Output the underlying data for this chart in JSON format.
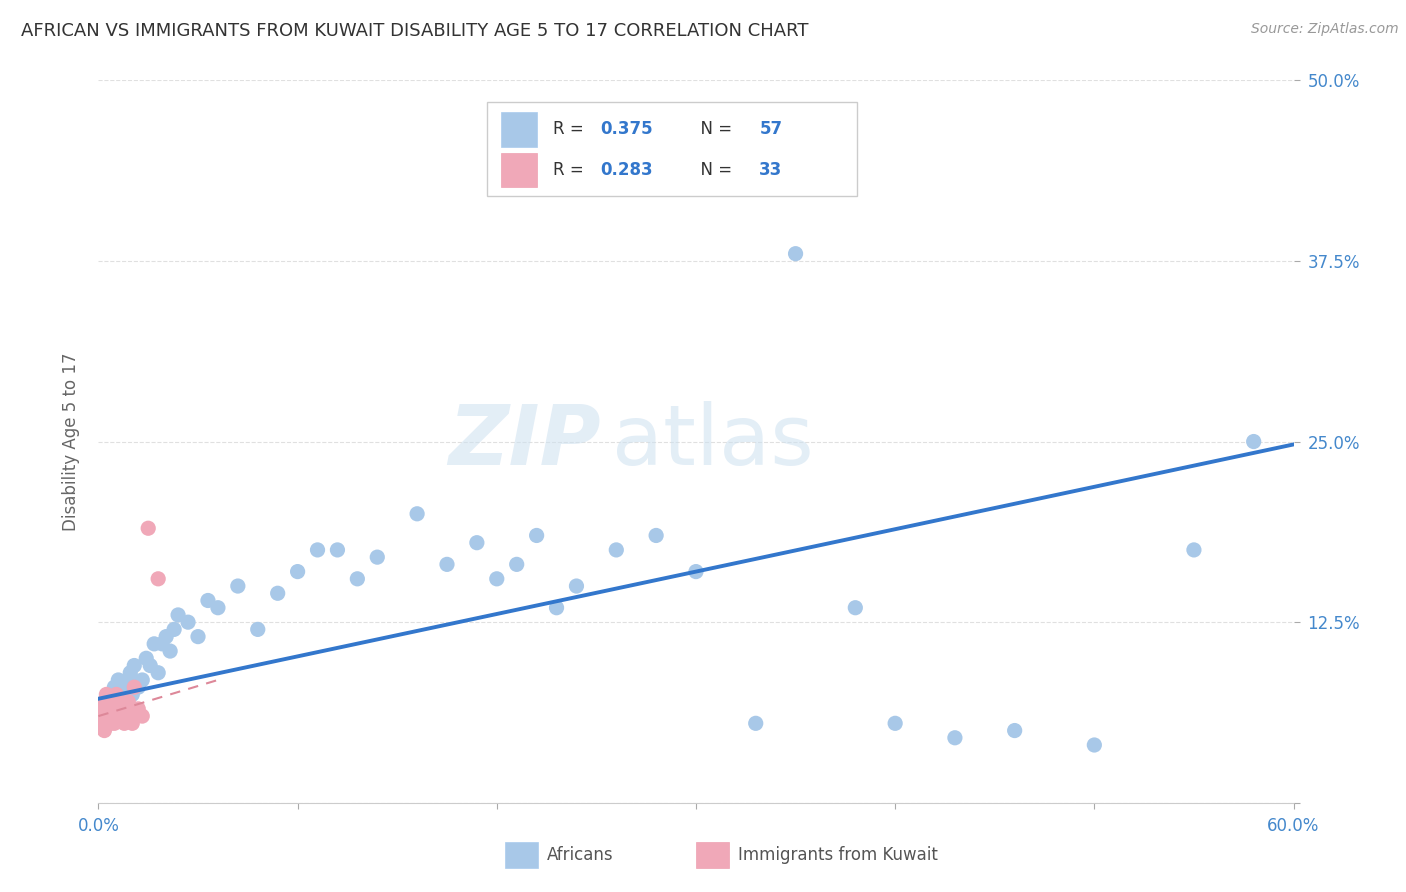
{
  "title": "AFRICAN VS IMMIGRANTS FROM KUWAIT DISABILITY AGE 5 TO 17 CORRELATION CHART",
  "source": "Source: ZipAtlas.com",
  "ylabel": "Disability Age 5 to 17",
  "xlim": [
    0.0,
    0.6
  ],
  "ylim": [
    0.0,
    0.5
  ],
  "xticks": [
    0.0,
    0.1,
    0.2,
    0.3,
    0.4,
    0.5,
    0.6
  ],
  "xticklabels": [
    "0.0%",
    "",
    "",
    "",
    "",
    "",
    "60.0%"
  ],
  "yticks_right": [
    0.0,
    0.125,
    0.25,
    0.375,
    0.5
  ],
  "yticklabels_right": [
    "",
    "12.5%",
    "25.0%",
    "37.5%",
    "50.0%"
  ],
  "africans_x": [
    0.004,
    0.006,
    0.007,
    0.008,
    0.009,
    0.01,
    0.011,
    0.012,
    0.013,
    0.014,
    0.015,
    0.016,
    0.017,
    0.018,
    0.02,
    0.022,
    0.024,
    0.026,
    0.028,
    0.03,
    0.032,
    0.034,
    0.036,
    0.038,
    0.04,
    0.045,
    0.05,
    0.055,
    0.06,
    0.07,
    0.08,
    0.09,
    0.1,
    0.11,
    0.12,
    0.13,
    0.14,
    0.16,
    0.175,
    0.19,
    0.2,
    0.21,
    0.22,
    0.23,
    0.24,
    0.26,
    0.28,
    0.3,
    0.33,
    0.35,
    0.38,
    0.4,
    0.43,
    0.46,
    0.5,
    0.55,
    0.58
  ],
  "africans_y": [
    0.07,
    0.075,
    0.075,
    0.08,
    0.065,
    0.085,
    0.075,
    0.07,
    0.065,
    0.08,
    0.085,
    0.09,
    0.075,
    0.095,
    0.08,
    0.085,
    0.1,
    0.095,
    0.11,
    0.09,
    0.11,
    0.115,
    0.105,
    0.12,
    0.13,
    0.125,
    0.115,
    0.14,
    0.135,
    0.15,
    0.12,
    0.145,
    0.16,
    0.175,
    0.175,
    0.155,
    0.17,
    0.2,
    0.165,
    0.18,
    0.155,
    0.165,
    0.185,
    0.135,
    0.15,
    0.175,
    0.185,
    0.16,
    0.055,
    0.38,
    0.135,
    0.055,
    0.045,
    0.05,
    0.04,
    0.175,
    0.25
  ],
  "kuwait_x": [
    0.001,
    0.002,
    0.002,
    0.003,
    0.003,
    0.003,
    0.004,
    0.004,
    0.004,
    0.005,
    0.005,
    0.005,
    0.006,
    0.006,
    0.007,
    0.007,
    0.008,
    0.008,
    0.009,
    0.01,
    0.01,
    0.011,
    0.012,
    0.013,
    0.014,
    0.015,
    0.016,
    0.017,
    0.018,
    0.02,
    0.022,
    0.025,
    0.03
  ],
  "kuwait_y": [
    0.06,
    0.055,
    0.065,
    0.05,
    0.06,
    0.07,
    0.055,
    0.065,
    0.075,
    0.055,
    0.06,
    0.07,
    0.06,
    0.055,
    0.065,
    0.06,
    0.055,
    0.065,
    0.075,
    0.06,
    0.07,
    0.065,
    0.06,
    0.055,
    0.065,
    0.07,
    0.06,
    0.055,
    0.08,
    0.065,
    0.06,
    0.19,
    0.155
  ],
  "africans_color": "#a8c8e8",
  "kuwait_color": "#f0a8b8",
  "trend_blue_color": "#3377cc",
  "trend_pink_color": "#dd8899",
  "R_africans": 0.375,
  "N_africans": 57,
  "R_kuwait": 0.283,
  "N_kuwait": 33,
  "watermark_zip": "ZIP",
  "watermark_atlas": "atlas",
  "background_color": "#ffffff",
  "grid_color": "#e0e0e0",
  "scatter_size": 120,
  "trend_blue_x0": 0.0,
  "trend_blue_y0": 0.072,
  "trend_blue_x1": 0.6,
  "trend_blue_y1": 0.248,
  "trend_pink_x0": 0.0,
  "trend_pink_y0": 0.06,
  "trend_pink_x1": 0.06,
  "trend_pink_y1": 0.085
}
